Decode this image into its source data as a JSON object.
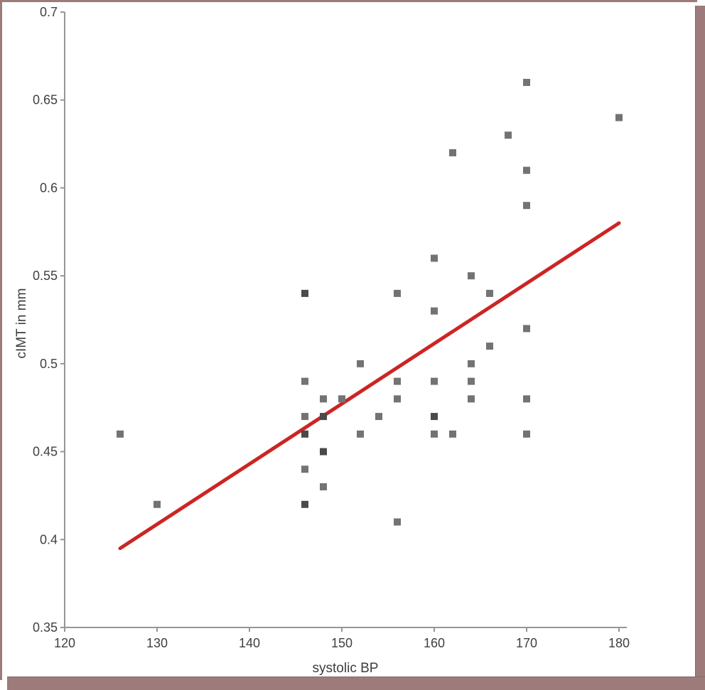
{
  "chart_data": {
    "type": "scatter",
    "title": "",
    "xlabel": "systolic BP",
    "ylabel": "cIMT in mm",
    "xlim": [
      120,
      180
    ],
    "ylim": [
      0.35,
      0.7
    ],
    "grid": false,
    "legend": false,
    "x_ticks": [
      120,
      130,
      140,
      150,
      160,
      170,
      180
    ],
    "x_tick_labels": [
      "120",
      "130",
      "140",
      "150",
      "160",
      "170",
      "180"
    ],
    "y_ticks": [
      0.35,
      0.4,
      0.45,
      0.5,
      0.55,
      0.6,
      0.65,
      0.7
    ],
    "y_tick_labels": [
      "0.35",
      "0.4",
      "0.45",
      "0.5",
      "0.55",
      "0.6",
      "0.65",
      "0.7"
    ],
    "points": [
      {
        "x": 126,
        "y": 0.46,
        "dark": false
      },
      {
        "x": 130,
        "y": 0.42,
        "dark": false
      },
      {
        "x": 146,
        "y": 0.54,
        "dark": true
      },
      {
        "x": 146,
        "y": 0.49,
        "dark": false
      },
      {
        "x": 146,
        "y": 0.47,
        "dark": false
      },
      {
        "x": 146,
        "y": 0.46,
        "dark": true
      },
      {
        "x": 146,
        "y": 0.44,
        "dark": false
      },
      {
        "x": 146,
        "y": 0.42,
        "dark": true
      },
      {
        "x": 148,
        "y": 0.48,
        "dark": false
      },
      {
        "x": 148,
        "y": 0.47,
        "dark": true
      },
      {
        "x": 148,
        "y": 0.45,
        "dark": true
      },
      {
        "x": 148,
        "y": 0.43,
        "dark": false
      },
      {
        "x": 150,
        "y": 0.48,
        "dark": false
      },
      {
        "x": 152,
        "y": 0.5,
        "dark": false
      },
      {
        "x": 152,
        "y": 0.46,
        "dark": false
      },
      {
        "x": 154,
        "y": 0.47,
        "dark": false
      },
      {
        "x": 156,
        "y": 0.54,
        "dark": false
      },
      {
        "x": 156,
        "y": 0.49,
        "dark": false
      },
      {
        "x": 156,
        "y": 0.48,
        "dark": false
      },
      {
        "x": 156,
        "y": 0.41,
        "dark": false
      },
      {
        "x": 160,
        "y": 0.56,
        "dark": false
      },
      {
        "x": 160,
        "y": 0.53,
        "dark": false
      },
      {
        "x": 160,
        "y": 0.49,
        "dark": false
      },
      {
        "x": 160,
        "y": 0.47,
        "dark": true
      },
      {
        "x": 160,
        "y": 0.46,
        "dark": false
      },
      {
        "x": 162,
        "y": 0.62,
        "dark": false
      },
      {
        "x": 162,
        "y": 0.46,
        "dark": false
      },
      {
        "x": 164,
        "y": 0.55,
        "dark": false
      },
      {
        "x": 164,
        "y": 0.5,
        "dark": false
      },
      {
        "x": 164,
        "y": 0.49,
        "dark": false
      },
      {
        "x": 164,
        "y": 0.48,
        "dark": false
      },
      {
        "x": 166,
        "y": 0.54,
        "dark": false
      },
      {
        "x": 166,
        "y": 0.51,
        "dark": false
      },
      {
        "x": 168,
        "y": 0.63,
        "dark": false
      },
      {
        "x": 170,
        "y": 0.66,
        "dark": false
      },
      {
        "x": 170,
        "y": 0.61,
        "dark": false
      },
      {
        "x": 170,
        "y": 0.59,
        "dark": false
      },
      {
        "x": 170,
        "y": 0.52,
        "dark": false
      },
      {
        "x": 170,
        "y": 0.48,
        "dark": false
      },
      {
        "x": 170,
        "y": 0.46,
        "dark": false
      },
      {
        "x": 180,
        "y": 0.64,
        "dark": false
      }
    ],
    "trendline": {
      "x1": 126,
      "y1": 0.395,
      "x2": 180,
      "y2": 0.58
    }
  },
  "colors": {
    "marker": "#737373",
    "marker_dark": "#4a4a4a",
    "trend": "#cc2524",
    "axis": "#969696",
    "tick_text": "#404040",
    "axis_title_text": "#3d3d3d",
    "frame": "#9d7b7b",
    "frame_edge": "#8a6666",
    "background": "#ffffff"
  }
}
